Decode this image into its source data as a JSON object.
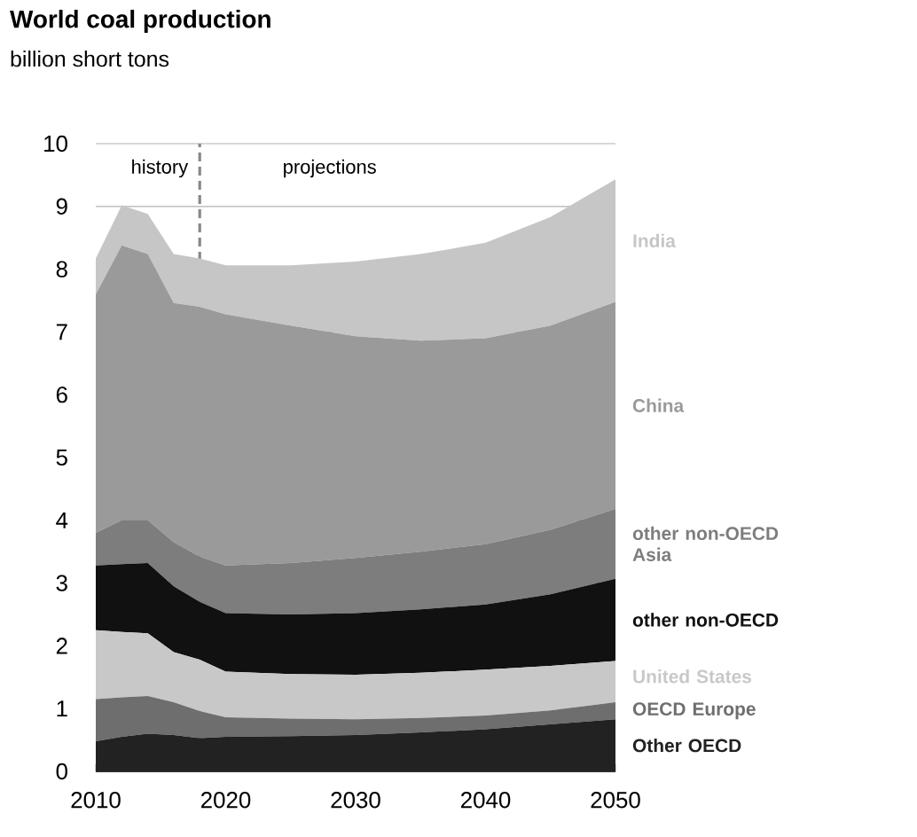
{
  "chart_data": {
    "type": "area",
    "title": "World coal production",
    "subtitle": "billion short tons",
    "stacked": true,
    "grid": "y",
    "x": [
      2010,
      2012,
      2014,
      2016,
      2018,
      2020,
      2025,
      2030,
      2035,
      2040,
      2045,
      2050
    ],
    "xlim": [
      2010,
      2050
    ],
    "xticks": [
      2010,
      2020,
      2030,
      2040,
      2050
    ],
    "ylim": [
      0,
      10
    ],
    "yticks": [
      0,
      1,
      2,
      3,
      4,
      5,
      6,
      7,
      8,
      9,
      10
    ],
    "series": [
      {
        "name": "Other OECD",
        "color": "#222222",
        "values": [
          0.48,
          0.55,
          0.6,
          0.58,
          0.53,
          0.55,
          0.56,
          0.58,
          0.62,
          0.67,
          0.75,
          0.83
        ]
      },
      {
        "name": "OECD Europe",
        "color": "#6e6e6e",
        "values": [
          0.67,
          0.63,
          0.6,
          0.52,
          0.43,
          0.31,
          0.28,
          0.25,
          0.23,
          0.22,
          0.22,
          0.27
        ]
      },
      {
        "name": "United States",
        "color": "#c8c8c8",
        "values": [
          1.1,
          1.04,
          1.0,
          0.8,
          0.82,
          0.73,
          0.71,
          0.71,
          0.72,
          0.73,
          0.71,
          0.66
        ]
      },
      {
        "name": "other non-OECD",
        "color": "#111111",
        "values": [
          1.03,
          1.08,
          1.12,
          1.05,
          0.92,
          0.93,
          0.95,
          0.98,
          1.01,
          1.04,
          1.14,
          1.31
        ]
      },
      {
        "name": "other non-OECD Asia",
        "color": "#7d7d7d",
        "values": [
          0.52,
          0.7,
          0.68,
          0.7,
          0.72,
          0.76,
          0.82,
          0.88,
          0.92,
          0.96,
          1.03,
          1.11
        ]
      },
      {
        "name": "China",
        "color": "#9a9a9a",
        "values": [
          3.8,
          4.38,
          4.24,
          3.81,
          3.98,
          4.0,
          3.78,
          3.53,
          3.36,
          3.28,
          3.25,
          3.3
        ]
      },
      {
        "name": "India",
        "color": "#c6c6c6",
        "values": [
          0.57,
          0.64,
          0.64,
          0.78,
          0.77,
          0.78,
          0.96,
          1.19,
          1.38,
          1.52,
          1.73,
          1.95
        ]
      }
    ],
    "ref_lines": [
      {
        "axis": "x",
        "value": 2018,
        "color": "#888888",
        "line_style": "dashed"
      }
    ],
    "annotations": [
      "history",
      "projections"
    ]
  }
}
